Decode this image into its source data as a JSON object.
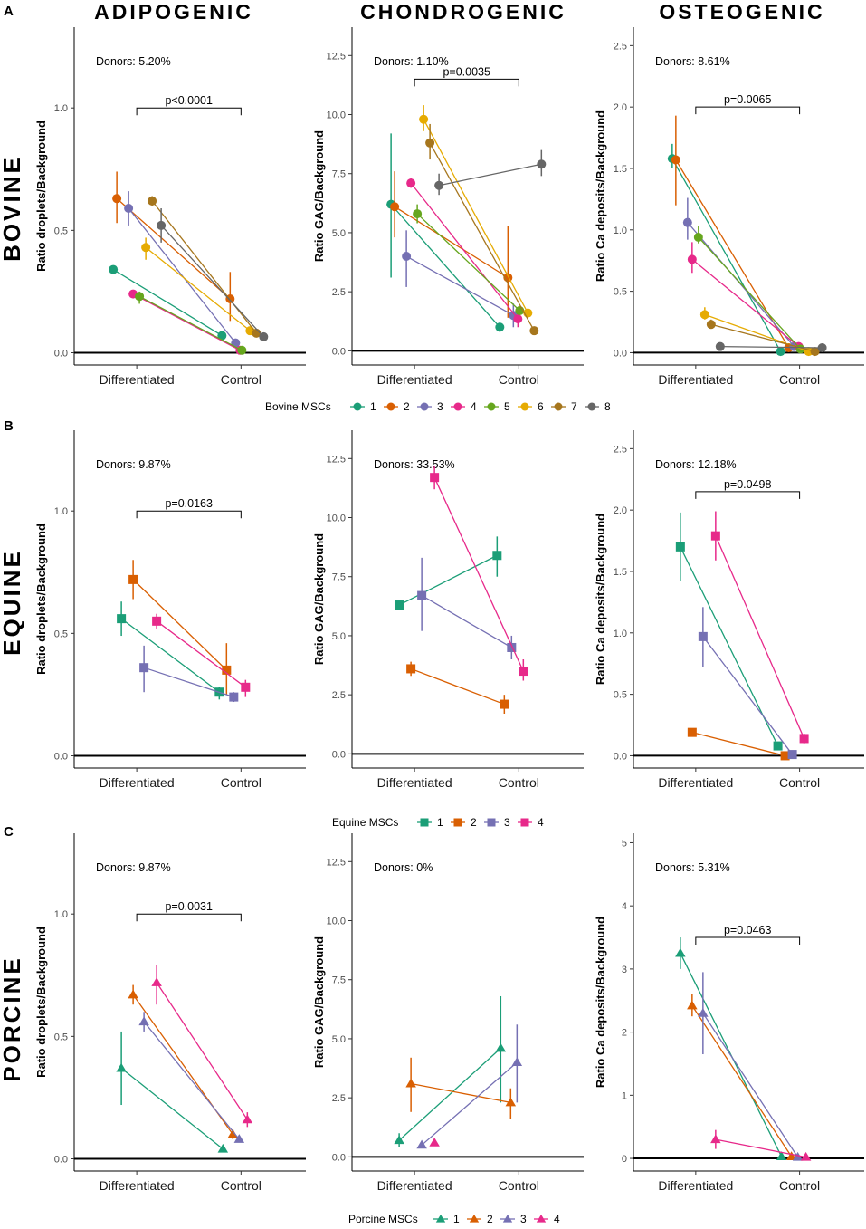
{
  "figure": {
    "column_titles": [
      "ADIPOGENIC",
      "CHONDROGENIC",
      "OSTEOGENIC"
    ],
    "panel_letters": [
      "A",
      "B",
      "C"
    ],
    "row_labels": [
      "BOVINE",
      "EQUINE",
      "PORCINE"
    ]
  },
  "palette": {
    "donors": [
      "#1b9e77",
      "#d95f02",
      "#7570b3",
      "#e7298a",
      "#66a61e",
      "#e6ab02",
      "#a6761d",
      "#666666"
    ],
    "text": "#000000",
    "axis": "#000000",
    "tick_text": "#4d4d4d"
  },
  "legends": [
    {
      "title": "Bovine MSCs",
      "shape": "circle",
      "items": [
        "1",
        "2",
        "3",
        "4",
        "5",
        "6",
        "7",
        "8"
      ]
    },
    {
      "title": "Equine MSCs",
      "shape": "square",
      "items": [
        "1",
        "2",
        "3",
        "4"
      ]
    },
    {
      "title": "Porcine MSCs",
      "shape": "triangle",
      "items": [
        "1",
        "2",
        "3",
        "4"
      ]
    }
  ],
  "chart_data": [
    {
      "type": "line",
      "species": "BOVINE",
      "differentiation": "ADIPOGENIC",
      "ylabel": "Ratio droplets/Background",
      "categories": [
        "Differentiated",
        "Control"
      ],
      "ylim": [
        -0.05,
        1.33
      ],
      "yticks": [
        0.0,
        0.5,
        1.0
      ],
      "ytick_labels": [
        "0.0",
        "0.5",
        "1.0"
      ],
      "donors_text": "Donors: 5.20%",
      "pvalue": "p<0.0001",
      "bracket_y": 1.0,
      "series": [
        {
          "name": "1",
          "values": [
            0.34,
            0.07
          ],
          "err_lo": [
            0.34,
            0.07
          ],
          "err_hi": [
            0.34,
            0.07
          ]
        },
        {
          "name": "2",
          "values": [
            0.63,
            0.22
          ],
          "err_lo": [
            0.53,
            0.13
          ],
          "err_hi": [
            0.74,
            0.33
          ]
        },
        {
          "name": "3",
          "values": [
            0.59,
            0.04
          ],
          "err_lo": [
            0.52,
            0.03
          ],
          "err_hi": [
            0.66,
            0.05
          ]
        },
        {
          "name": "4",
          "values": [
            0.24,
            0.01
          ],
          "err_lo": [
            0.23,
            0.01
          ],
          "err_hi": [
            0.25,
            0.01
          ]
        },
        {
          "name": "5",
          "values": [
            0.23,
            0.01
          ],
          "err_lo": [
            0.2,
            0.01
          ],
          "err_hi": [
            0.25,
            0.01
          ]
        },
        {
          "name": "6",
          "values": [
            0.43,
            0.09
          ],
          "err_lo": [
            0.38,
            0.08
          ],
          "err_hi": [
            0.47,
            0.1
          ]
        },
        {
          "name": "7",
          "values": [
            0.62,
            0.08
          ],
          "err_lo": [
            0.6,
            0.07
          ],
          "err_hi": [
            0.64,
            0.09
          ]
        },
        {
          "name": "8",
          "values": [
            0.52,
            0.065
          ],
          "err_lo": [
            0.45,
            0.06
          ],
          "err_hi": [
            0.59,
            0.07
          ]
        }
      ]
    },
    {
      "type": "line",
      "species": "BOVINE",
      "differentiation": "CHONDROGENIC",
      "ylabel": "Ratio GAG/Background",
      "categories": [
        "Differentiated",
        "Control"
      ],
      "ylim": [
        -0.6,
        13.7
      ],
      "yticks": [
        0.0,
        2.5,
        5.0,
        7.5,
        10.0,
        12.5
      ],
      "ytick_labels": [
        "0.0",
        "2.5",
        "5.0",
        "7.5",
        "10.0",
        "12.5"
      ],
      "donors_text": "Donors: 1.10%",
      "pvalue": "p=0.0035",
      "bracket_y": 11.5,
      "series": [
        {
          "name": "1",
          "values": [
            6.2,
            1.0
          ],
          "err_lo": [
            3.1,
            0.8
          ],
          "err_hi": [
            9.2,
            1.2
          ]
        },
        {
          "name": "2",
          "values": [
            6.1,
            3.1
          ],
          "err_lo": [
            4.8,
            1.4
          ],
          "err_hi": [
            7.6,
            5.3
          ]
        },
        {
          "name": "3",
          "values": [
            4.0,
            1.5
          ],
          "err_lo": [
            2.7,
            1.0
          ],
          "err_hi": [
            5.1,
            2.0
          ]
        },
        {
          "name": "4",
          "values": [
            7.1,
            1.35
          ],
          "err_lo": [
            6.9,
            1.0
          ],
          "err_hi": [
            7.3,
            1.7
          ]
        },
        {
          "name": "5",
          "values": [
            5.8,
            1.7
          ],
          "err_lo": [
            5.4,
            1.6
          ],
          "err_hi": [
            6.2,
            1.8
          ]
        },
        {
          "name": "6",
          "values": [
            9.8,
            1.6
          ],
          "err_lo": [
            9.3,
            1.5
          ],
          "err_hi": [
            10.4,
            1.7
          ]
        },
        {
          "name": "7",
          "values": [
            8.8,
            0.85
          ],
          "err_lo": [
            8.1,
            0.8
          ],
          "err_hi": [
            9.6,
            0.9
          ]
        },
        {
          "name": "8",
          "values": [
            7.0,
            7.9
          ],
          "err_lo": [
            6.6,
            7.4
          ],
          "err_hi": [
            7.5,
            8.5
          ]
        }
      ]
    },
    {
      "type": "line",
      "species": "BOVINE",
      "differentiation": "OSTEOGENIC",
      "ylabel": "Ratio Ca deposits/Background",
      "categories": [
        "Differentiated",
        "Control"
      ],
      "ylim": [
        -0.1,
        2.65
      ],
      "yticks": [
        0.0,
        0.5,
        1.0,
        1.5,
        2.0,
        2.5
      ],
      "ytick_labels": [
        "0.0",
        "0.5",
        "1.0",
        "1.5",
        "2.0",
        "2.5"
      ],
      "donors_text": "Donors: 8.61%",
      "pvalue": "p=0.0065",
      "bracket_y": 2.0,
      "series": [
        {
          "name": "1",
          "values": [
            1.58,
            0.01
          ],
          "err_lo": [
            1.5,
            0.01
          ],
          "err_hi": [
            1.7,
            0.01
          ]
        },
        {
          "name": "2",
          "values": [
            1.57,
            0.04
          ],
          "err_lo": [
            1.2,
            0.03
          ],
          "err_hi": [
            1.93,
            0.05
          ]
        },
        {
          "name": "3",
          "values": [
            1.06,
            0.05
          ],
          "err_lo": [
            0.92,
            0.04
          ],
          "err_hi": [
            1.26,
            0.06
          ]
        },
        {
          "name": "4",
          "values": [
            0.76,
            0.05
          ],
          "err_lo": [
            0.65,
            0.04
          ],
          "err_hi": [
            0.9,
            0.06
          ]
        },
        {
          "name": "5",
          "values": [
            0.94,
            0.03
          ],
          "err_lo": [
            0.89,
            0.02
          ],
          "err_hi": [
            1.03,
            0.04
          ]
        },
        {
          "name": "6",
          "values": [
            0.31,
            0.01
          ],
          "err_lo": [
            0.27,
            0.005
          ],
          "err_hi": [
            0.37,
            0.015
          ]
        },
        {
          "name": "7",
          "values": [
            0.23,
            0.01
          ],
          "err_lo": [
            0.21,
            0.005
          ],
          "err_hi": [
            0.27,
            0.015
          ]
        },
        {
          "name": "8",
          "values": [
            0.05,
            0.04
          ],
          "err_lo": [
            0.05,
            0.03
          ],
          "err_hi": [
            0.05,
            0.05
          ]
        }
      ]
    },
    {
      "type": "line",
      "species": "EQUINE",
      "differentiation": "ADIPOGENIC",
      "ylabel": "Ratio droplets/Background",
      "categories": [
        "Differentiated",
        "Control"
      ],
      "ylim": [
        -0.05,
        1.33
      ],
      "yticks": [
        0.0,
        0.5,
        1.0
      ],
      "ytick_labels": [
        "0.0",
        "0.5",
        "1.0"
      ],
      "donors_text": "Donors: 9.87%",
      "pvalue": "p=0.0163",
      "bracket_y": 1.0,
      "series": [
        {
          "name": "1",
          "values": [
            0.56,
            0.26
          ],
          "err_lo": [
            0.49,
            0.23
          ],
          "err_hi": [
            0.63,
            0.28
          ]
        },
        {
          "name": "2",
          "values": [
            0.72,
            0.35
          ],
          "err_lo": [
            0.64,
            0.25
          ],
          "err_hi": [
            0.8,
            0.46
          ]
        },
        {
          "name": "3",
          "values": [
            0.36,
            0.24
          ],
          "err_lo": [
            0.26,
            0.22
          ],
          "err_hi": [
            0.45,
            0.26
          ]
        },
        {
          "name": "4",
          "values": [
            0.55,
            0.28
          ],
          "err_lo": [
            0.52,
            0.24
          ],
          "err_hi": [
            0.58,
            0.31
          ]
        }
      ]
    },
    {
      "type": "line",
      "species": "EQUINE",
      "differentiation": "CHONDROGENIC",
      "ylabel": "Ratio GAG/Background",
      "categories": [
        "Differentiated",
        "Control"
      ],
      "ylim": [
        -0.6,
        13.7
      ],
      "yticks": [
        0.0,
        2.5,
        5.0,
        7.5,
        10.0,
        12.5
      ],
      "ytick_labels": [
        "0.0",
        "2.5",
        "5.0",
        "7.5",
        "10.0",
        "12.5"
      ],
      "donors_text": "Donors: 33.53%",
      "pvalue": "",
      "bracket_y": null,
      "series": [
        {
          "name": "1",
          "values": [
            6.3,
            8.4
          ],
          "err_lo": [
            6.3,
            7.5
          ],
          "err_hi": [
            6.3,
            9.2
          ]
        },
        {
          "name": "2",
          "values": [
            3.6,
            2.1
          ],
          "err_lo": [
            3.3,
            1.7
          ],
          "err_hi": [
            3.9,
            2.5
          ]
        },
        {
          "name": "3",
          "values": [
            6.7,
            4.5
          ],
          "err_lo": [
            5.2,
            4.0
          ],
          "err_hi": [
            8.3,
            5.0
          ]
        },
        {
          "name": "4",
          "values": [
            11.7,
            3.5
          ],
          "err_lo": [
            11.2,
            3.1
          ],
          "err_hi": [
            12.2,
            4.0
          ]
        }
      ]
    },
    {
      "type": "line",
      "species": "EQUINE",
      "differentiation": "OSTEOGENIC",
      "ylabel": "Ratio Ca deposits/Background",
      "categories": [
        "Differentiated",
        "Control"
      ],
      "ylim": [
        -0.1,
        2.65
      ],
      "yticks": [
        0.0,
        0.5,
        1.0,
        1.5,
        2.0,
        2.5
      ],
      "ytick_labels": [
        "0.0",
        "0.5",
        "1.0",
        "1.5",
        "2.0",
        "2.5"
      ],
      "donors_text": "Donors: 12.18%",
      "pvalue": "p=0.0498",
      "bracket_y": 2.15,
      "series": [
        {
          "name": "1",
          "values": [
            1.7,
            0.08
          ],
          "err_lo": [
            1.42,
            0.05
          ],
          "err_hi": [
            1.98,
            0.1
          ]
        },
        {
          "name": "2",
          "values": [
            0.19,
            0.0
          ],
          "err_lo": [
            0.19,
            0.0
          ],
          "err_hi": [
            0.19,
            0.0
          ]
        },
        {
          "name": "3",
          "values": [
            0.97,
            0.01
          ],
          "err_lo": [
            0.72,
            0.005
          ],
          "err_hi": [
            1.21,
            0.015
          ]
        },
        {
          "name": "4",
          "values": [
            1.79,
            0.14
          ],
          "err_lo": [
            1.59,
            0.1
          ],
          "err_hi": [
            1.99,
            0.18
          ]
        }
      ]
    },
    {
      "type": "line",
      "species": "PORCINE",
      "differentiation": "ADIPOGENIC",
      "ylabel": "Ratio droplets/Background",
      "categories": [
        "Differentiated",
        "Control"
      ],
      "ylim": [
        -0.05,
        1.33
      ],
      "yticks": [
        0.0,
        0.5,
        1.0
      ],
      "ytick_labels": [
        "0.0",
        "0.5",
        "1.0"
      ],
      "donors_text": "Donors: 9.87%",
      "pvalue": "p=0.0031",
      "bracket_y": 1.0,
      "series": [
        {
          "name": "1",
          "values": [
            0.37,
            0.04
          ],
          "err_lo": [
            0.22,
            0.03
          ],
          "err_hi": [
            0.52,
            0.05
          ]
        },
        {
          "name": "2",
          "values": [
            0.67,
            0.1
          ],
          "err_lo": [
            0.63,
            0.08
          ],
          "err_hi": [
            0.71,
            0.12
          ]
        },
        {
          "name": "3",
          "values": [
            0.56,
            0.08
          ],
          "err_lo": [
            0.52,
            0.07
          ],
          "err_hi": [
            0.6,
            0.09
          ]
        },
        {
          "name": "4",
          "values": [
            0.72,
            0.16
          ],
          "err_lo": [
            0.63,
            0.13
          ],
          "err_hi": [
            0.79,
            0.19
          ]
        }
      ]
    },
    {
      "type": "line",
      "species": "PORCINE",
      "differentiation": "CHONDROGENIC",
      "ylabel": "Ratio GAG/Background",
      "categories": [
        "Differentiated",
        "Control"
      ],
      "ylim": [
        -0.6,
        13.7
      ],
      "yticks": [
        0.0,
        2.5,
        5.0,
        7.5,
        10.0,
        12.5
      ],
      "ytick_labels": [
        "0.0",
        "2.5",
        "5.0",
        "7.5",
        "10.0",
        "12.5"
      ],
      "donors_text": "Donors: 0%",
      "pvalue": "",
      "bracket_y": null,
      "series": [
        {
          "name": "1",
          "values": [
            0.7,
            4.6
          ],
          "err_lo": [
            0.4,
            2.3
          ],
          "err_hi": [
            1.0,
            6.8
          ]
        },
        {
          "name": "2",
          "values": [
            3.1,
            2.3
          ],
          "err_lo": [
            1.9,
            1.6
          ],
          "err_hi": [
            4.2,
            2.9
          ]
        },
        {
          "name": "3",
          "values": [
            0.5,
            4.0
          ],
          "err_lo": [
            0.5,
            2.3
          ],
          "err_hi": [
            0.5,
            5.6
          ]
        },
        {
          "name": "4",
          "values": [
            0.6,
            null
          ],
          "err_lo": [
            0.6,
            null
          ],
          "err_hi": [
            0.6,
            null
          ]
        }
      ]
    },
    {
      "type": "line",
      "species": "PORCINE",
      "differentiation": "OSTEOGENIC",
      "ylabel": "Ratio Ca deposits/Background",
      "categories": [
        "Differentiated",
        "Control"
      ],
      "ylim": [
        -0.2,
        5.15
      ],
      "yticks": [
        0,
        1,
        2,
        3,
        4,
        5
      ],
      "ytick_labels": [
        "0",
        "1",
        "2",
        "3",
        "4",
        "5"
      ],
      "donors_text": "Donors: 5.31%",
      "pvalue": "p=0.0463",
      "bracket_y": 3.5,
      "series": [
        {
          "name": "1",
          "values": [
            3.25,
            0.03
          ],
          "err_lo": [
            3.0,
            0.02
          ],
          "err_hi": [
            3.5,
            0.04
          ]
        },
        {
          "name": "2",
          "values": [
            2.42,
            0.03
          ],
          "err_lo": [
            2.25,
            0.02
          ],
          "err_hi": [
            2.6,
            0.04
          ]
        },
        {
          "name": "3",
          "values": [
            2.3,
            0.02
          ],
          "err_lo": [
            1.65,
            0.01
          ],
          "err_hi": [
            2.95,
            0.03
          ]
        },
        {
          "name": "4",
          "values": [
            0.3,
            0.02
          ],
          "err_lo": [
            0.15,
            0.01
          ],
          "err_hi": [
            0.45,
            0.03
          ]
        }
      ]
    }
  ]
}
